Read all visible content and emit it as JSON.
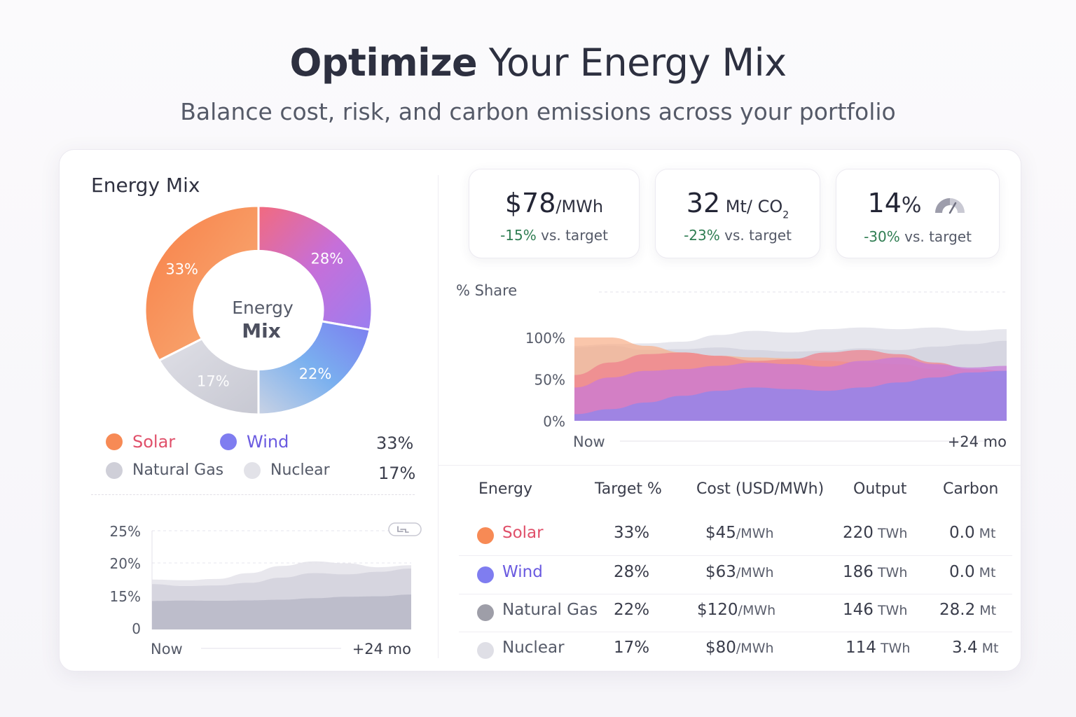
{
  "header": {
    "title_bold": "Optimize",
    "title_rest": " Your Energy Mix",
    "subtitle": "Balance cost, risk, and carbon emissions across your portfolio"
  },
  "energy_mix_panel": {
    "title": "Energy Mix",
    "center_label_line1": "Energy",
    "center_label_line2": "Mix",
    "legend": [
      {
        "name": "Solar",
        "color": "#f78a55",
        "text_color": "#e0506a"
      },
      {
        "name": "Wind",
        "color": "#7f7df0",
        "text_color": "#6a5ae0"
      },
      {
        "name": "Natural Gas",
        "color": "#cfcfd8",
        "text_color": "#555a68"
      },
      {
        "name": "Nuclear",
        "color": "#e2e2e8",
        "text_color": "#555a68"
      }
    ],
    "legend_pct_1": "33%",
    "legend_pct_2": "17%"
  },
  "kpis": [
    {
      "value": "$78",
      "unit": "/MWh",
      "delta": "-15%",
      "delta_text": " vs. target"
    },
    {
      "value": "32",
      "unit": " Mt/ CO",
      "unit_sub": "2",
      "delta": "-23%",
      "delta_text": " vs. target"
    },
    {
      "value": "14",
      "unit": "%",
      "delta": "-30%",
      "delta_text": " vs. target",
      "icon": "gauge-icon"
    }
  ],
  "chart_data": [
    {
      "type": "pie",
      "title": "",
      "categories": [
        "Solar",
        "Wind",
        "Natural Gas",
        "Nuclear"
      ],
      "values": [
        33,
        28,
        22,
        17
      ],
      "labels": [
        "33%",
        "28%",
        "22%",
        "17%"
      ],
      "colors": [
        "#f78f52",
        "#c66fd9",
        "#7f9bf0",
        "#cfd0d8"
      ]
    },
    {
      "type": "area",
      "ylabel": "% Share",
      "y_ticks": [
        "100%",
        "50%",
        "0%"
      ],
      "ylim": [
        0,
        100
      ],
      "x_start": "Now",
      "x_end": "+24 mo",
      "series": [
        {
          "color": "#dcdce6",
          "values": [
            90,
            92,
            93,
            95,
            103,
            108,
            106,
            110,
            112,
            110,
            112,
            108,
            110
          ]
        },
        {
          "color": "#cfcfdb",
          "values": [
            88,
            90,
            85,
            86,
            88,
            85,
            83,
            84,
            87,
            85,
            89,
            92,
            96
          ]
        },
        {
          "color": "#f8b08a",
          "values": [
            100,
            100,
            90,
            82,
            78,
            76,
            75,
            72,
            70,
            68,
            62,
            55,
            50
          ]
        },
        {
          "color": "#ef7f8c",
          "values": [
            55,
            70,
            80,
            82,
            78,
            72,
            74,
            82,
            85,
            80,
            70,
            62,
            60
          ]
        },
        {
          "color": "#c878d8",
          "values": [
            40,
            52,
            60,
            62,
            66,
            70,
            68,
            65,
            72,
            76,
            68,
            64,
            66
          ]
        },
        {
          "color": "#8a86ee",
          "values": [
            8,
            14,
            22,
            30,
            36,
            40,
            38,
            36,
            40,
            46,
            52,
            58,
            60
          ]
        }
      ]
    },
    {
      "type": "area",
      "y_ticks": [
        "25%",
        "20%",
        "15%",
        "0"
      ],
      "x_start": "Now",
      "x_end": "+24 mo",
      "series": [
        {
          "color": "#e4e3ea",
          "values": [
            17.5,
            17.4,
            17.6,
            18.5,
            19.6,
            20.3,
            20.0,
            19.4,
            19.7
          ]
        },
        {
          "color": "#d2d1dc",
          "values": [
            16.8,
            16.5,
            16.6,
            17.0,
            17.8,
            18.5,
            18.3,
            18.7,
            19.2
          ]
        },
        {
          "color": "#b9b8c8",
          "values": [
            12.6,
            12.8,
            12.7,
            12.9,
            13.2,
            13.9,
            14.6,
            14.8,
            15.2
          ]
        }
      ]
    }
  ],
  "table": {
    "headers": [
      "Energy",
      "Target %",
      "Cost (USD/MWh)",
      "Output",
      "Carbon"
    ],
    "rows": [
      {
        "name": "Solar",
        "dot": "#f78a55",
        "text_color": "#e0506a",
        "target": "33%",
        "cost": "$45",
        "cost_unit": "/MWh",
        "output": "220",
        "output_unit": " TWh",
        "carbon": "0.0",
        "carbon_unit": " Mt"
      },
      {
        "name": "Wind",
        "dot": "#7f7df0",
        "text_color": "#6a5ae0",
        "target": "28%",
        "cost": "$63",
        "cost_unit": "/MWh",
        "output": "186",
        "output_unit": " TWh",
        "carbon": "0.0",
        "carbon_unit": " Mt"
      },
      {
        "name": "Natural Gas",
        "dot": "#9e9ea8",
        "text_color": "#555a68",
        "target": "22%",
        "cost": "$120",
        "cost_unit": "/MWh",
        "output": "146",
        "output_unit": " TWh",
        "carbon": "28.2",
        "carbon_unit": " Mt"
      },
      {
        "name": "Nuclear",
        "dot": "#dfdfe6",
        "text_color": "#555a68",
        "target": "17%",
        "cost": "$80",
        "cost_unit": "/MWh",
        "output": "114",
        "output_unit": " TWh",
        "carbon": "3.4",
        "carbon_unit": " Mt"
      }
    ]
  }
}
